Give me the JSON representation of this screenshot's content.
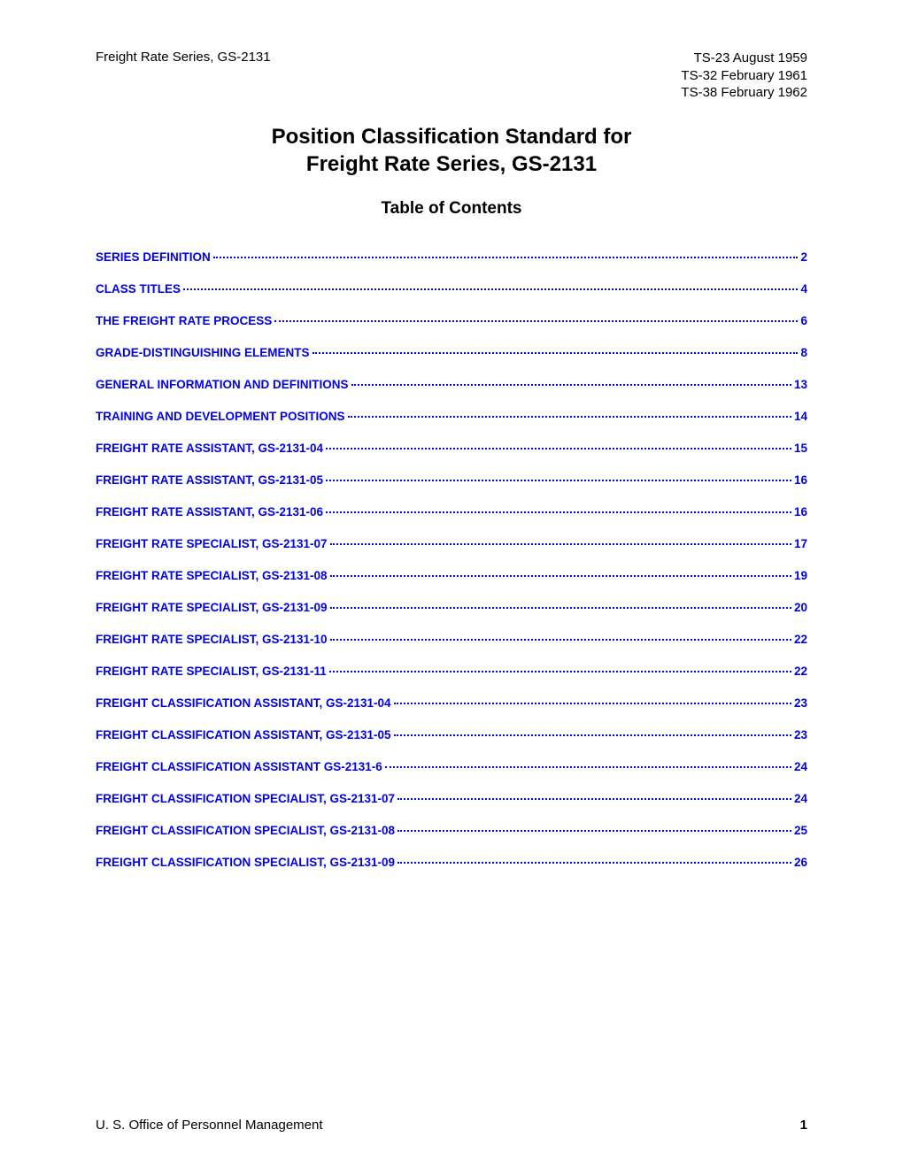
{
  "header": {
    "left": "Freight Rate Series, GS-2131",
    "right": [
      "TS-23  August 1959",
      "TS-32  February 1961",
      "TS-38  February 1962"
    ]
  },
  "title": {
    "line1": "Position Classification Standard for",
    "line2": "Freight Rate Series, GS-2131"
  },
  "toc_heading": "Table of Contents",
  "toc": [
    {
      "label": "SERIES DEFINITION",
      "page": "2"
    },
    {
      "label": "CLASS TITLES",
      "page": "4"
    },
    {
      "label": "THE FREIGHT RATE PROCESS",
      "page": "6"
    },
    {
      "label": "GRADE-DISTINGUISHING ELEMENTS",
      "page": "8"
    },
    {
      "label": "GENERAL INFORMATION AND DEFINITIONS",
      "page": "13"
    },
    {
      "label": "TRAINING AND DEVELOPMENT POSITIONS",
      "page": "14"
    },
    {
      "label": "FREIGHT RATE ASSISTANT, GS-2131-04",
      "page": "15"
    },
    {
      "label": "FREIGHT RATE ASSISTANT, GS-2131-05",
      "page": "16"
    },
    {
      "label": "FREIGHT RATE ASSISTANT, GS-2131-06",
      "page": "16"
    },
    {
      "label": "FREIGHT RATE SPECIALIST, GS-2131-07",
      "page": "17"
    },
    {
      "label": "FREIGHT RATE SPECIALIST, GS-2131-08",
      "page": "19"
    },
    {
      "label": "FREIGHT RATE SPECIALIST, GS-2131-09",
      "page": "20"
    },
    {
      "label": "FREIGHT RATE SPECIALIST, GS-2131-10",
      "page": "22"
    },
    {
      "label": "FREIGHT RATE SPECIALIST, GS-2131-11",
      "page": "22"
    },
    {
      "label": "FREIGHT CLASSIFICATION ASSISTANT, GS-2131-04",
      "page": "23"
    },
    {
      "label": "FREIGHT CLASSIFICATION ASSISTANT, GS-2131-05",
      "page": "23"
    },
    {
      "label": "FREIGHT CLASSIFICATION ASSISTANT GS-2131-6",
      "page": "24"
    },
    {
      "label": "FREIGHT CLASSIFICATION SPECIALIST, GS-2131-07",
      "page": "24"
    },
    {
      "label": "FREIGHT CLASSIFICATION SPECIALIST, GS-2131-08",
      "page": "25"
    },
    {
      "label": "FREIGHT CLASSIFICATION SPECIALIST, GS-2131-09",
      "page": "26"
    }
  ],
  "footer": {
    "left": "U. S. Office of Personnel Management",
    "page": "1"
  },
  "colors": {
    "link": "#0000ee",
    "text": "#000000",
    "background": "#ffffff"
  },
  "typography": {
    "body_family": "Arial",
    "title_size_pt": 18,
    "toc_heading_size_pt": 14,
    "toc_entry_size_pt": 10,
    "header_size_pt": 11
  }
}
